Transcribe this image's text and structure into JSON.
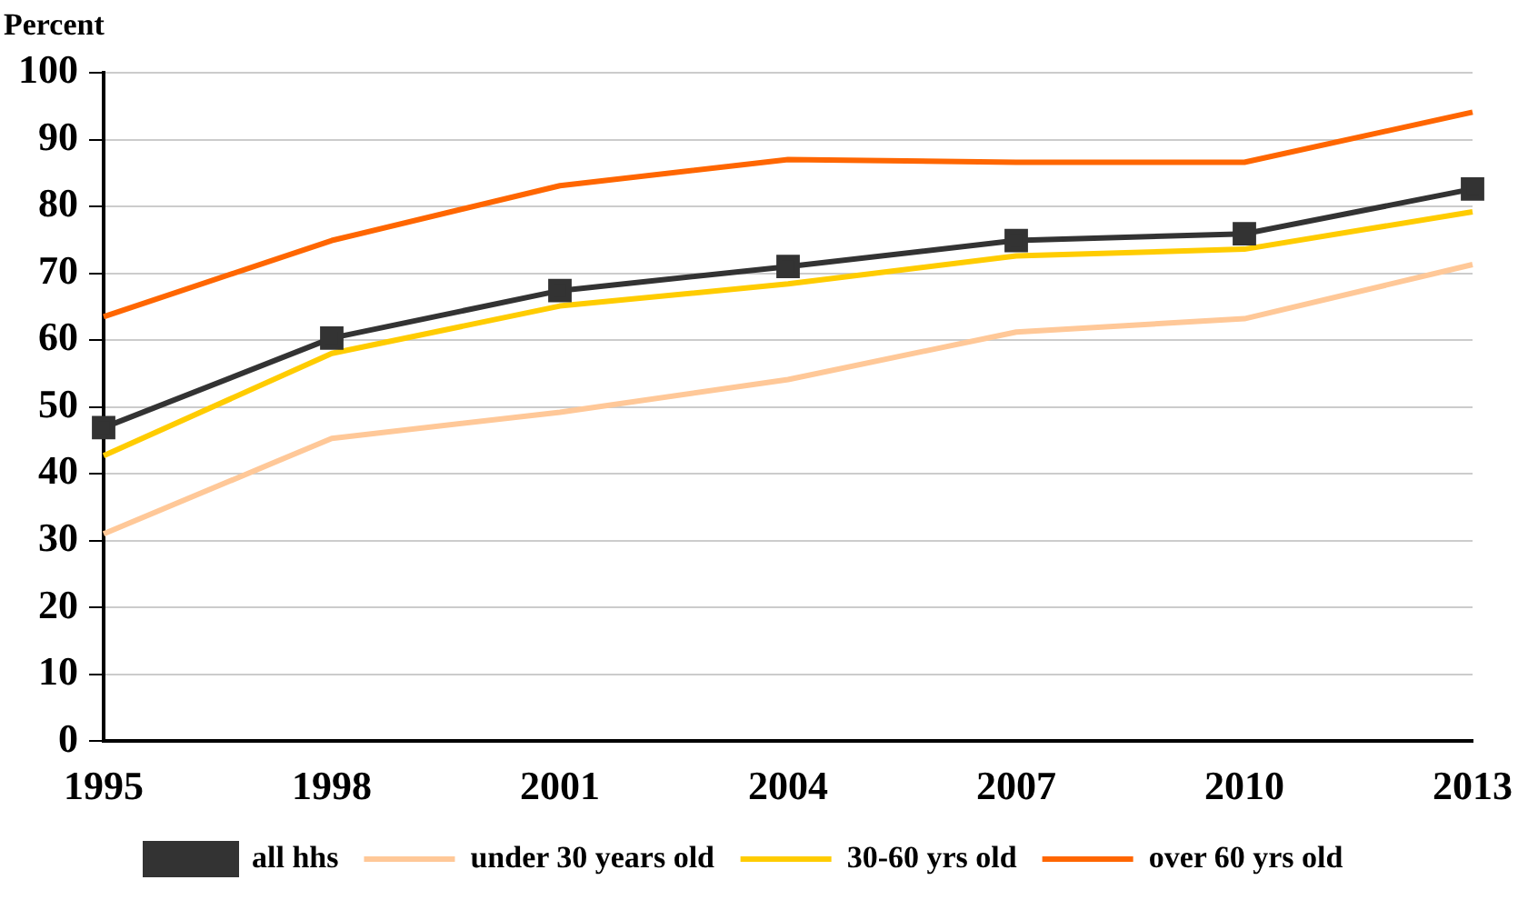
{
  "chart_data": {
    "type": "line",
    "ylabel": "Percent",
    "categories": [
      "1995",
      "1998",
      "2001",
      "2004",
      "2007",
      "2010",
      "2013"
    ],
    "series": [
      {
        "name": "all hhs",
        "color": "#333333",
        "marker": "square",
        "values": [
          46.9,
          60.3,
          67.4,
          71,
          74.9,
          75.9,
          82.6
        ]
      },
      {
        "name": "under 30 years old",
        "color": "#ffc898",
        "marker": "none",
        "values": [
          31,
          45.3,
          49.2,
          54.1,
          61.2,
          63.2,
          71.3
        ]
      },
      {
        "name": "30-60 yrs old",
        "color": "#ffcc00",
        "marker": "none",
        "values": [
          42.7,
          58,
          65.1,
          68.4,
          72.6,
          73.6,
          79.2
        ]
      },
      {
        "name": "over 60 yrs old",
        "color": "#ff6600",
        "marker": "none",
        "values": [
          63.5,
          74.9,
          83.1,
          87,
          86.6,
          86.6,
          94.1
        ]
      }
    ],
    "ylim": [
      0,
      100
    ],
    "yticks": [
      0,
      10,
      20,
      30,
      40,
      50,
      60,
      70,
      80,
      90,
      100
    ],
    "grid": "y",
    "legend": "bottom"
  }
}
